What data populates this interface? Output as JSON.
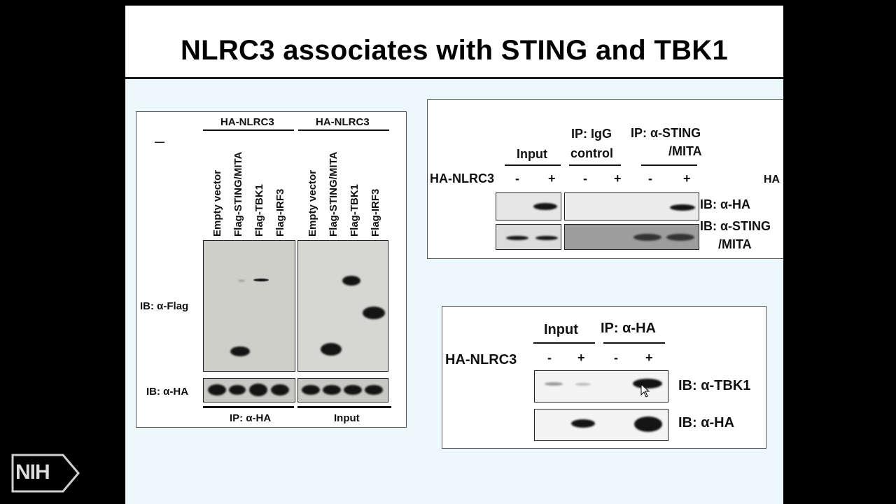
{
  "slide": {
    "title": "NLRC3 associates with STING and TBK1"
  },
  "left_panel": {
    "dash": "—",
    "group_headers": [
      "HA-NLRC3",
      "HA-NLRC3"
    ],
    "lanes": [
      "Empty vector",
      "Flag-STING/MITA",
      "Flag-TBK1",
      "Flag-IRF3",
      "Empty vector",
      "Flag-STING/MITA",
      "Flag-TBK1",
      "Flag-IRF3"
    ],
    "row_labels": [
      "IB: α-Flag",
      "IB: α-HA"
    ],
    "footer_labels": [
      "IP: α-HA",
      "Input"
    ]
  },
  "top_right_panel": {
    "col_headers": [
      "Input",
      "IP: IgG",
      "control",
      "IP: α-STING",
      "/MITA"
    ],
    "row_label": "HA-NLRC3",
    "signs": [
      "-",
      "+",
      "-",
      "+",
      "-",
      "+"
    ],
    "cut_off_label": "HA",
    "blot_labels": [
      "IB: α-HA",
      "IB: α-STING",
      "/MITA"
    ]
  },
  "bottom_right_panel": {
    "col_headers": [
      "Input",
      "IP: α-HA"
    ],
    "row_label": "HA-NLRC3",
    "signs": [
      "-",
      "+",
      "-",
      "+"
    ],
    "blot_labels": [
      "IB: α-TBK1",
      "IB: α-HA"
    ]
  },
  "logo": {
    "text": "NIH"
  }
}
